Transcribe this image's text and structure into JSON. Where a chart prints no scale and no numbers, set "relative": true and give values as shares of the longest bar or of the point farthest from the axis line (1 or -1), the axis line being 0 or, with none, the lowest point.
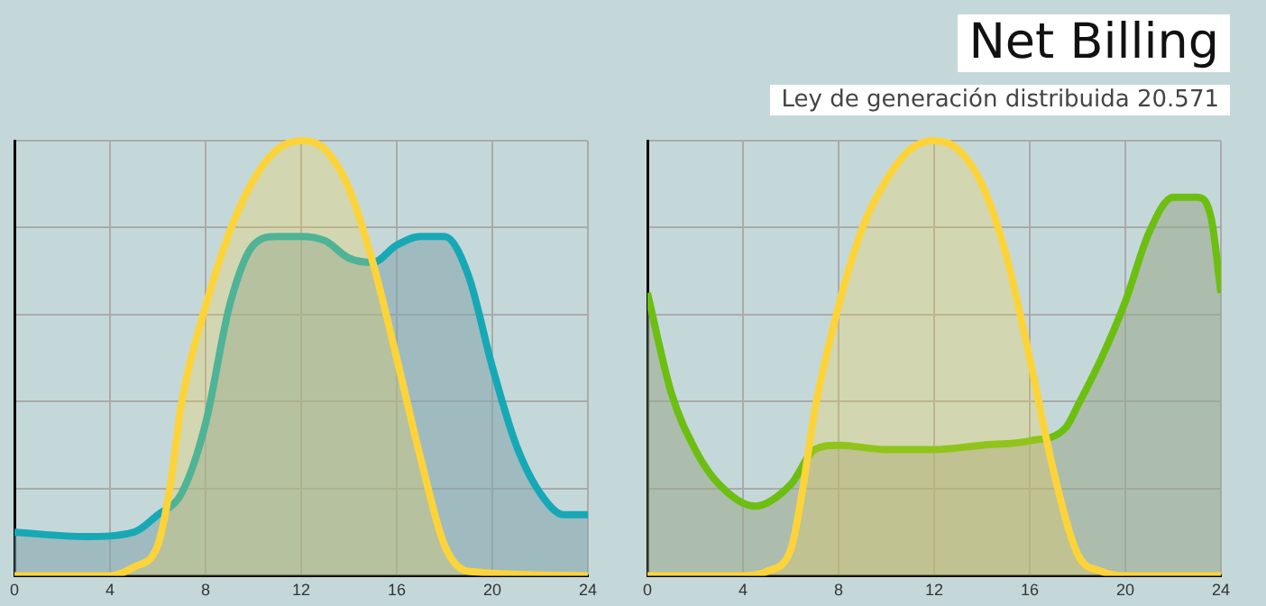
{
  "chart_data": [
    {
      "type": "area",
      "relative": true,
      "xlim": [
        0,
        24
      ],
      "xticks": [
        0,
        4,
        8,
        12,
        16,
        20,
        24
      ],
      "grid": true,
      "legend": false,
      "marker": "none",
      "series": [
        {
          "color": "#fcd43a",
          "x": [
            0,
            4,
            5,
            6,
            6.5,
            7,
            8,
            9,
            10,
            11,
            12,
            13,
            14,
            15,
            16,
            17,
            18,
            19,
            24
          ],
          "values": [
            0,
            0,
            0.02,
            0.07,
            0.2,
            0.4,
            0.62,
            0.79,
            0.91,
            0.98,
            1,
            0.98,
            0.89,
            0.72,
            0.5,
            0.27,
            0.07,
            0.01,
            0
          ]
        },
        {
          "color": "#16a9b5",
          "x": [
            0,
            3,
            5,
            6,
            7,
            8,
            9,
            10,
            11,
            12,
            13,
            14,
            15,
            16,
            17,
            18,
            19,
            20,
            21,
            22,
            23,
            24
          ],
          "values": [
            0.1,
            0.09,
            0.1,
            0.14,
            0.19,
            0.35,
            0.62,
            0.76,
            0.78,
            0.78,
            0.77,
            0.73,
            0.72,
            0.76,
            0.78,
            0.78,
            0.69,
            0.48,
            0.3,
            0.19,
            0.14,
            0.14
          ]
        }
      ]
    },
    {
      "type": "area",
      "relative": true,
      "title": "Net Billing",
      "subtitle": "Ley de generación distribuida 20.571",
      "xlim": [
        0,
        24
      ],
      "xticks": [
        0,
        4,
        8,
        12,
        16,
        20,
        24
      ],
      "grid": true,
      "legend": false,
      "marker": "none",
      "series": [
        {
          "color": "#fcd43a",
          "x": [
            0,
            4,
            5,
            6,
            6.5,
            7,
            8,
            9,
            10,
            11,
            12,
            13,
            14,
            15,
            16,
            17,
            18,
            19,
            20,
            24
          ],
          "values": [
            0,
            0,
            0.01,
            0.06,
            0.2,
            0.38,
            0.62,
            0.8,
            0.91,
            0.98,
            1,
            0.98,
            0.9,
            0.74,
            0.5,
            0.24,
            0.05,
            0.01,
            0,
            0
          ]
        },
        {
          "color": "#6cbf10",
          "x": [
            0,
            1,
            2,
            3,
            4.5,
            6,
            7,
            8,
            10,
            12,
            14,
            16,
            17.5,
            18,
            19,
            20,
            21,
            22,
            23,
            23.6,
            24
          ],
          "values": [
            0.65,
            0.42,
            0.29,
            0.21,
            0.16,
            0.21,
            0.29,
            0.3,
            0.29,
            0.29,
            0.3,
            0.31,
            0.34,
            0.39,
            0.5,
            0.63,
            0.79,
            0.87,
            0.87,
            0.82,
            0.65
          ]
        }
      ]
    }
  ]
}
